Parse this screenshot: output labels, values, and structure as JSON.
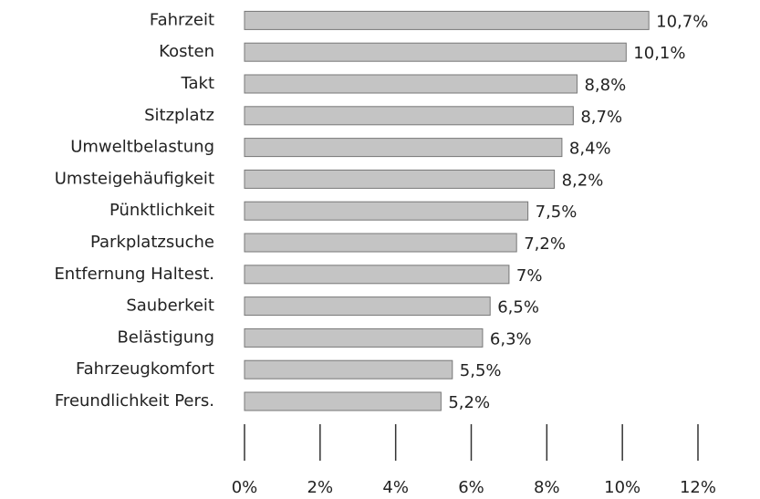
{
  "chart_data": {
    "type": "bar",
    "orientation": "horizontal",
    "categories": [
      "Fahrzeit",
      "Kosten",
      "Takt",
      "Sitzplatz",
      "Umweltbelastung",
      "Umsteigehäufigkeit",
      "Pünktlichkeit",
      "Parkplatzsuche",
      "Entfernung Haltest.",
      "Sauberkeit",
      "Belästigung",
      "Fahrzeugkomfort",
      "Freundlichkeit Pers."
    ],
    "values": [
      10.7,
      10.1,
      8.8,
      8.7,
      8.4,
      8.2,
      7.5,
      7.2,
      7,
      6.5,
      6.3,
      5.5,
      5.2
    ],
    "value_labels": [
      "10,7%",
      "10,1%",
      "8,8%",
      "8,7%",
      "8,4%",
      "8,2%",
      "7,5%",
      "7,2%",
      "7%",
      "6,5%",
      "6,3%",
      "5,5%",
      "5,2%"
    ],
    "color": "#c4c4c4",
    "xlim": [
      0,
      12
    ],
    "xticks": [
      {
        "value": 0,
        "label": "0%"
      },
      {
        "value": 2,
        "label": "2%"
      },
      {
        "value": 4,
        "label": "4%"
      },
      {
        "value": 6,
        "label": "6%"
      },
      {
        "value": 8,
        "label": "8%"
      },
      {
        "value": 10,
        "label": "10%"
      },
      {
        "value": 12,
        "label": "12%"
      }
    ],
    "grid": false
  }
}
